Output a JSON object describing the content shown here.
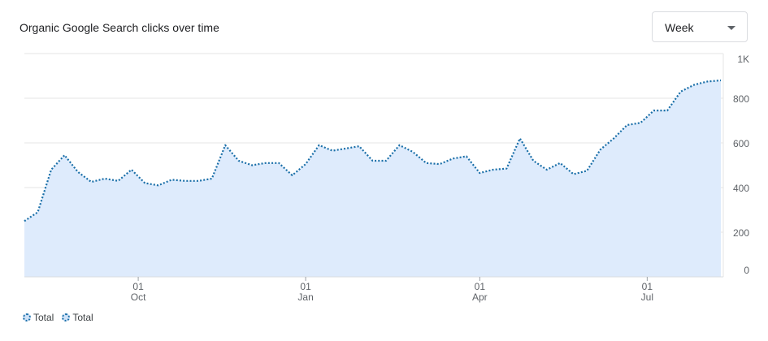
{
  "header": {
    "title": "Organic Google Search clicks over time",
    "period_select": {
      "value": "Week",
      "icon": "chevron-down-icon"
    }
  },
  "colors": {
    "line": "#1a6fa8",
    "area": "#deebfc",
    "grid": "#e6e6e6",
    "text": "#5f6368"
  },
  "chart_data": {
    "type": "area",
    "title": "Organic Google Search clicks over time",
    "xlabel": "",
    "ylabel": "",
    "ylim": [
      0,
      1000
    ],
    "yticks": [
      {
        "value": 0,
        "label": "0"
      },
      {
        "value": 200,
        "label": "200"
      },
      {
        "value": 400,
        "label": "400"
      },
      {
        "value": 600,
        "label": "600"
      },
      {
        "value": 800,
        "label": "800"
      },
      {
        "value": 1000,
        "label": "1K"
      }
    ],
    "xlim": [
      0,
      52
    ],
    "xticks": [
      {
        "x": 8.5,
        "day": "01",
        "month": "Oct"
      },
      {
        "x": 21,
        "day": "01",
        "month": "Jan"
      },
      {
        "x": 34,
        "day": "01",
        "month": "Apr"
      },
      {
        "x": 46.5,
        "day": "01",
        "month": "Jul"
      }
    ],
    "grid": true,
    "legend_position": "bottom-left",
    "series": [
      {
        "name": "Total",
        "style": "dotted",
        "x": [
          0,
          1,
          2,
          3,
          4,
          5,
          6,
          7,
          8,
          9,
          10,
          11,
          12,
          13,
          14,
          15,
          16,
          17,
          18,
          19,
          20,
          21,
          22,
          23,
          24,
          25,
          26,
          27,
          28,
          29,
          30,
          31,
          32,
          33,
          34,
          35,
          36,
          37,
          38,
          39,
          40,
          41,
          42,
          43,
          44,
          45,
          46,
          47,
          48,
          49,
          50,
          51,
          52
        ],
        "values": [
          250,
          290,
          480,
          545,
          470,
          425,
          440,
          430,
          480,
          420,
          410,
          435,
          430,
          430,
          440,
          590,
          520,
          500,
          510,
          510,
          455,
          505,
          590,
          565,
          575,
          585,
          520,
          520,
          590,
          560,
          510,
          505,
          530,
          540,
          465,
          480,
          485,
          620,
          520,
          480,
          510,
          460,
          475,
          570,
          620,
          680,
          690,
          745,
          745,
          830,
          860,
          875,
          880
        ]
      }
    ]
  },
  "legend": {
    "items": [
      {
        "label": "Total"
      },
      {
        "label": "Total"
      }
    ]
  }
}
